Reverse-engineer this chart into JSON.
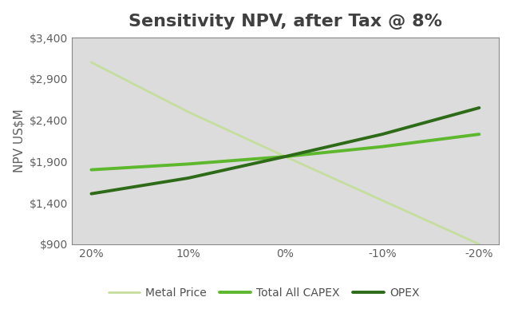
{
  "title": "Sensitivity NPV, after Tax @ 8%",
  "x_labels": [
    "20%",
    "10%",
    "0%",
    "-10%",
    "-20%"
  ],
  "x_values": [
    20,
    10,
    0,
    -10,
    -20
  ],
  "series": [
    {
      "name": "Metal Price",
      "values": [
        3100,
        2500,
        1960,
        1430,
        900
      ],
      "color": "#c5de9e",
      "linewidth": 2.0,
      "zorder": 2
    },
    {
      "name": "Total All CAPEX",
      "values": [
        1800,
        1870,
        1960,
        2080,
        2230
      ],
      "color": "#5db82e",
      "linewidth": 2.8,
      "zorder": 3
    },
    {
      "name": "OPEX",
      "values": [
        1510,
        1700,
        1960,
        2230,
        2550
      ],
      "color": "#2e6b18",
      "linewidth": 2.8,
      "zorder": 4
    }
  ],
  "ylabel": "NPV US$M",
  "ylim": [
    900,
    3400
  ],
  "yticks": [
    900,
    1400,
    1900,
    2400,
    2900,
    3400
  ],
  "ytick_labels": [
    "$900",
    "$1,400",
    "$1,900",
    "$2,400",
    "$2,900",
    "$3,400"
  ],
  "plot_bg_color": "#dcdcdc",
  "fig_bg_color": "#ffffff",
  "title_fontsize": 16,
  "title_color": "#404040",
  "axis_label_fontsize": 11,
  "tick_fontsize": 10,
  "tick_color": "#606060",
  "legend_fontsize": 10,
  "border_color": "#888888",
  "border_linewidth": 0.8
}
